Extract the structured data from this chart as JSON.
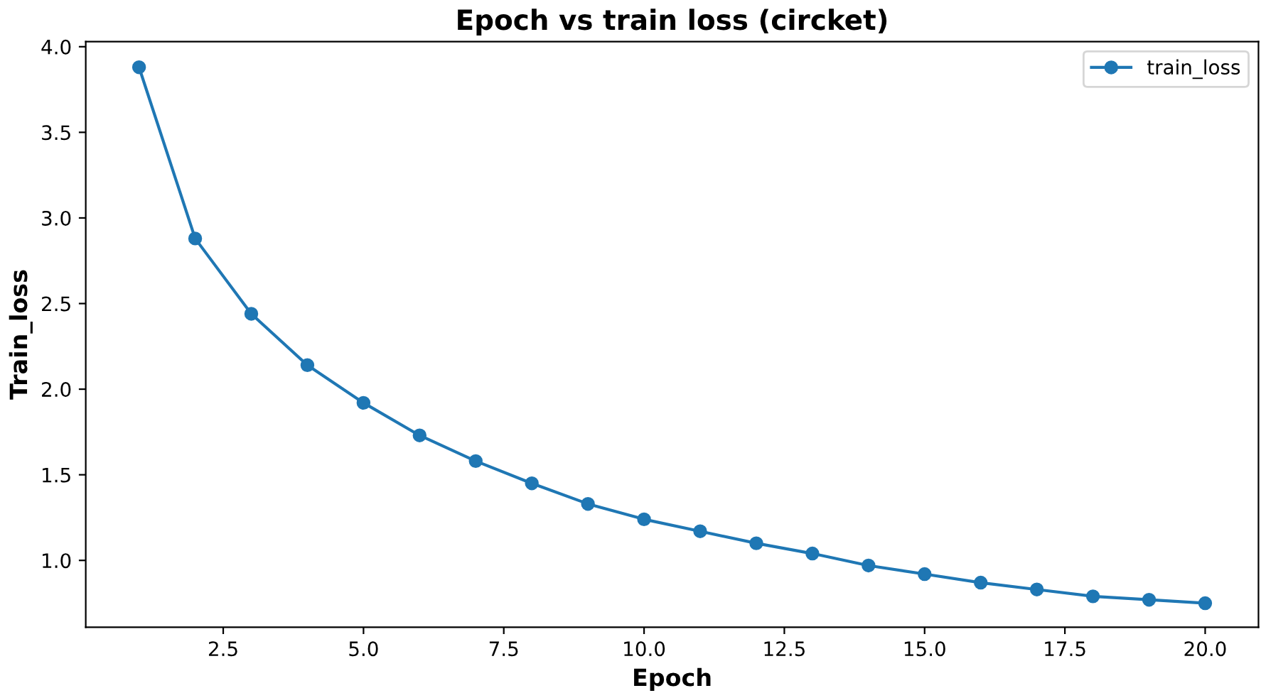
{
  "chart_data": {
    "type": "line",
    "title": "Epoch vs train loss (circket)",
    "xlabel": "Epoch",
    "ylabel": "Train_loss",
    "x": [
      1,
      2,
      3,
      4,
      5,
      6,
      7,
      8,
      9,
      10,
      11,
      12,
      13,
      14,
      15,
      16,
      17,
      18,
      19,
      20
    ],
    "series": [
      {
        "name": "train_loss",
        "color": "#1f77b4",
        "values": [
          3.88,
          2.88,
          2.44,
          2.14,
          1.92,
          1.73,
          1.58,
          1.45,
          1.33,
          1.24,
          1.17,
          1.1,
          1.04,
          0.97,
          0.92,
          0.87,
          0.83,
          0.79,
          0.77,
          0.75
        ]
      }
    ],
    "xlim": [
      0.05,
      20.95
    ],
    "ylim": [
      0.61,
      4.03
    ],
    "xticks": [
      {
        "value": 2.5,
        "label": "2.5"
      },
      {
        "value": 5,
        "label": "5.0"
      },
      {
        "value": 7.5,
        "label": "7.5"
      },
      {
        "value": 10,
        "label": "10.0"
      },
      {
        "value": 12.5,
        "label": "12.5"
      },
      {
        "value": 15,
        "label": "15.0"
      },
      {
        "value": 17.5,
        "label": "17.5"
      },
      {
        "value": 20,
        "label": "20.0"
      }
    ],
    "yticks": [
      {
        "value": 1,
        "label": "1.0"
      },
      {
        "value": 1.5,
        "label": "1.5"
      },
      {
        "value": 2,
        "label": "2.0"
      },
      {
        "value": 2.5,
        "label": "2.5"
      },
      {
        "value": 3,
        "label": "3.0"
      },
      {
        "value": 3.5,
        "label": "3.5"
      },
      {
        "value": 4,
        "label": "4.0"
      }
    ],
    "marker": "circle",
    "line_style": "solid",
    "legend": "top right",
    "grid": false
  }
}
